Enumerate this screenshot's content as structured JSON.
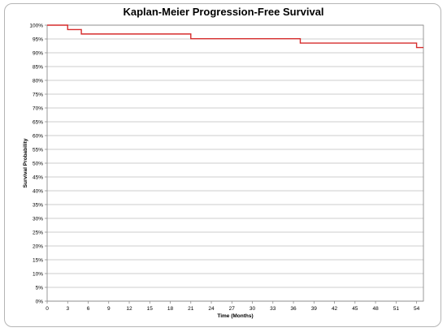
{
  "chart_data": {
    "type": "line",
    "title": "Kaplan-Meier Progression-Free Survival",
    "xlabel": "Time (Months)",
    "ylabel": "Survival Probability",
    "xlim": [
      0,
      55
    ],
    "ylim": [
      0,
      100
    ],
    "x_ticks": [
      0,
      3,
      6,
      9,
      12,
      15,
      18,
      21,
      24,
      27,
      30,
      33,
      36,
      39,
      42,
      45,
      48,
      51,
      54
    ],
    "y_ticks": [
      0,
      5,
      10,
      15,
      20,
      25,
      30,
      35,
      40,
      45,
      50,
      55,
      60,
      65,
      70,
      75,
      80,
      85,
      90,
      95,
      100
    ],
    "y_tick_labels": [
      "0%",
      "5%",
      "10%",
      "15%",
      "20%",
      "25%",
      "30%",
      "35%",
      "40%",
      "45%",
      "50%",
      "55%",
      "60%",
      "65%",
      "70%",
      "75%",
      "80%",
      "85%",
      "90%",
      "95%",
      "100%"
    ],
    "grid": true,
    "series": [
      {
        "color": "#d62c2c",
        "step": true,
        "x": [
          0,
          3,
          5,
          21,
          37,
          54,
          55
        ],
        "y": [
          100,
          98.4,
          96.8,
          95.1,
          93.5,
          91.9,
          91.9
        ]
      }
    ]
  }
}
